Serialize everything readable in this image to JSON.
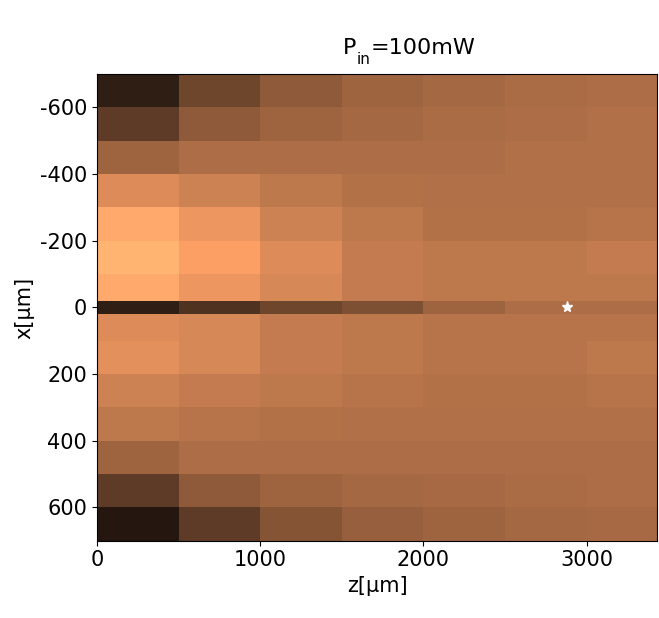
{
  "chart_data": {
    "type": "heatmap",
    "title": {
      "main": "P",
      "subscript": "in",
      "rest": "=100mW"
    },
    "x_label": "z[µm]",
    "y_label": "x[µm]",
    "xlim": [
      0,
      3430
    ],
    "ylim": [
      700,
      -700
    ],
    "xticks": [
      0,
      1000,
      2000,
      3000
    ],
    "yticks": [
      -600,
      -400,
      -200,
      0,
      200,
      400,
      600
    ],
    "z_edges": [
      0,
      500,
      1000,
      1500,
      2000,
      2500,
      3000,
      3430
    ],
    "x_edges": [
      -700,
      -600,
      -500,
      -400,
      -300,
      -200,
      -100,
      -20,
      20,
      100,
      200,
      300,
      400,
      500,
      600,
      700
    ],
    "cells": [
      [
        0.15,
        0.35,
        0.45,
        0.5,
        0.52,
        0.54,
        0.55
      ],
      [
        0.3,
        0.45,
        0.5,
        0.52,
        0.54,
        0.55,
        0.56
      ],
      [
        0.5,
        0.55,
        0.55,
        0.55,
        0.55,
        0.56,
        0.56
      ],
      [
        0.7,
        0.65,
        0.6,
        0.57,
        0.56,
        0.56,
        0.56
      ],
      [
        0.85,
        0.75,
        0.65,
        0.6,
        0.57,
        0.57,
        0.58
      ],
      [
        0.9,
        0.8,
        0.7,
        0.62,
        0.6,
        0.6,
        0.62
      ],
      [
        0.85,
        0.75,
        0.68,
        0.62,
        0.6,
        0.6,
        0.6
      ],
      [
        0.15,
        0.25,
        0.35,
        0.4,
        0.5,
        0.55,
        0.55
      ],
      [
        0.7,
        0.68,
        0.62,
        0.6,
        0.58,
        0.58,
        0.58
      ],
      [
        0.72,
        0.68,
        0.62,
        0.6,
        0.58,
        0.58,
        0.6
      ],
      [
        0.65,
        0.62,
        0.6,
        0.58,
        0.57,
        0.57,
        0.58
      ],
      [
        0.6,
        0.58,
        0.57,
        0.56,
        0.56,
        0.56,
        0.56
      ],
      [
        0.5,
        0.55,
        0.55,
        0.55,
        0.55,
        0.55,
        0.55
      ],
      [
        0.3,
        0.45,
        0.5,
        0.52,
        0.53,
        0.54,
        0.55
      ],
      [
        0.12,
        0.3,
        0.42,
        0.48,
        0.5,
        0.52,
        0.53
      ]
    ],
    "color_range": [
      0,
      1
    ],
    "points": {
      "z": [
        2880
      ],
      "x": [
        0
      ],
      "marker": "*",
      "color": "#ffffff"
    }
  }
}
